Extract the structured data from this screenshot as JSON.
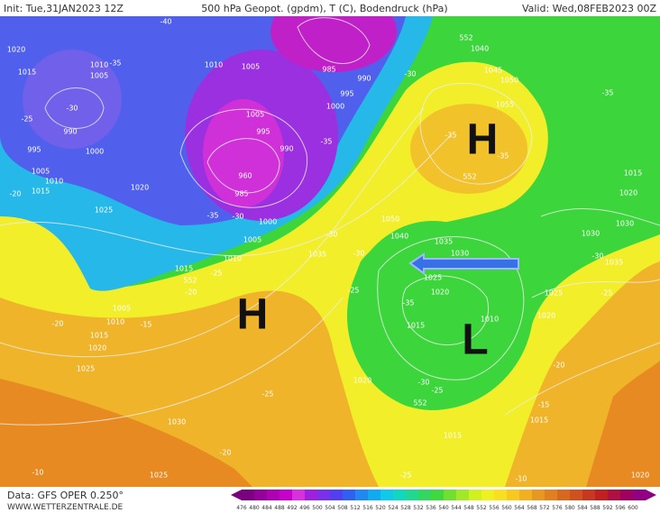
{
  "header": {
    "init": "Init: Tue,31JAN2023 12Z",
    "title": "500 hPa Geopot. (gpdm), T (C), Bodendruck (hPa)",
    "valid": "Valid: Wed,08FEB2023 00Z"
  },
  "footer": {
    "source": "Data: GFS OPER 0.250°",
    "site": "WWW.WETTERZENTRALE.DE"
  },
  "pressure_centers": [
    "H",
    "H",
    "L"
  ],
  "contour_labels": [
    1020,
    1015,
    1010,
    1005,
    990,
    1000,
    995,
    1005,
    1010,
    1015,
    1020,
    1025,
    1010,
    1005,
    985,
    990,
    995,
    1000,
    1005,
    995,
    990,
    960,
    985,
    1000,
    1005,
    1010,
    1015,
    1035,
    1045,
    1050,
    1055,
    1040,
    1050,
    1040,
    1035,
    1030,
    1025,
    1020,
    1015,
    1010,
    1025,
    1020,
    1015,
    1020,
    1030,
    1030,
    1035,
    1005,
    1010,
    1015,
    1020,
    1025,
    1030,
    1025,
    1020,
    1015,
    1015,
    1020,
    552,
    552,
    552,
    552,
    -25,
    -30,
    -35,
    -40,
    -35,
    -30,
    -25,
    -20,
    -20,
    -15,
    -25,
    -20,
    -10,
    -25,
    -30,
    -35,
    -30,
    -35,
    -30,
    -25,
    -20,
    -15,
    -10,
    -25,
    -30,
    -35,
    -20,
    -35,
    -35,
    -30,
    -25
  ],
  "colorbar": {
    "ticks": [
      476,
      480,
      484,
      488,
      492,
      496,
      500,
      504,
      508,
      512,
      516,
      520,
      524,
      528,
      532,
      536,
      540,
      544,
      548,
      552,
      556,
      560,
      564,
      568,
      572,
      576,
      580,
      584,
      588,
      592,
      596,
      600
    ],
    "colors": [
      "#7a0080",
      "#96009a",
      "#b000b4",
      "#c800cc",
      "#d830dc",
      "#a020e0",
      "#7a30e8",
      "#5040f0",
      "#3060f0",
      "#2088f0",
      "#10aaf0",
      "#10c8e8",
      "#10d8c0",
      "#20d890",
      "#30d860",
      "#40d840",
      "#70e030",
      "#a0e828",
      "#d0f020",
      "#f0f020",
      "#f8e020",
      "#f8c820",
      "#f0b020",
      "#e89820",
      "#e08020",
      "#d86820",
      "#d05020",
      "#c83820",
      "#c02020",
      "#b01040",
      "#a00060",
      "#900080"
    ]
  }
}
